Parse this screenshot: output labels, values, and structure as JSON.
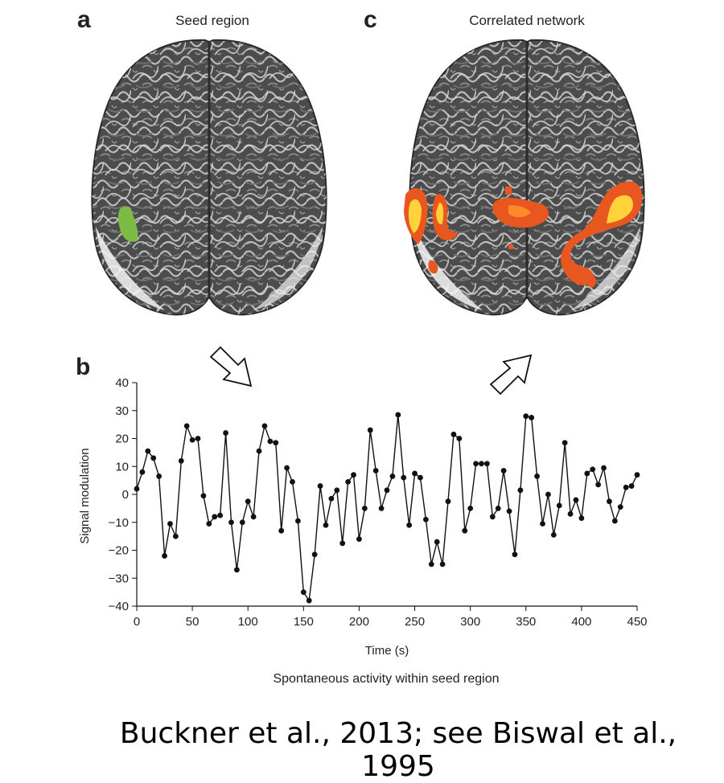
{
  "panels": {
    "a": {
      "letter": "a",
      "title": "Seed region"
    },
    "b": {
      "letter": "b"
    },
    "c": {
      "letter": "c",
      "title": "Correlated network"
    }
  },
  "colors": {
    "seed": "#7dbb45",
    "network_hot": "#ffd23a",
    "network_warm": "#e8571f",
    "brain_bg": "#4a4a4a"
  },
  "caption": "Spontaneous activity within seed region",
  "citation": "Buckner et al., 2013; see Biswal et al., 1995",
  "chart_data": {
    "type": "line",
    "xlabel": "Time (s)",
    "ylabel": "Signal modulation",
    "xlim": [
      0,
      450
    ],
    "ylim": [
      -40,
      40
    ],
    "xticks": [
      0,
      50,
      100,
      150,
      200,
      250,
      300,
      350,
      400,
      450
    ],
    "yticks": [
      40,
      30,
      20,
      10,
      0,
      -10,
      -20,
      -30,
      -40
    ],
    "xtick_labels": [
      "0",
      "50",
      "100",
      "150",
      "200",
      "250",
      "300",
      "350",
      "400",
      "450"
    ],
    "ytick_labels": [
      "40",
      "30",
      "20",
      "10",
      "0",
      "−10",
      "−20",
      "−30",
      "−40"
    ],
    "grid": false,
    "markers": true,
    "x": [
      0,
      5,
      10,
      15,
      20,
      25,
      30,
      35,
      40,
      45,
      50,
      55,
      60,
      65,
      70,
      75,
      80,
      85,
      90,
      95,
      100,
      105,
      110,
      115,
      120,
      125,
      130,
      135,
      140,
      145,
      150,
      155,
      160,
      165,
      170,
      175,
      180,
      185,
      190,
      195,
      200,
      205,
      210,
      215,
      220,
      225,
      230,
      235,
      240,
      245,
      250,
      255,
      260,
      265,
      270,
      275,
      280,
      285,
      290,
      295,
      300,
      305,
      310,
      315,
      320,
      325,
      330,
      335,
      340,
      345,
      350,
      355,
      360,
      365,
      370,
      375,
      380,
      385,
      390,
      395,
      400,
      405,
      410,
      415,
      420,
      425,
      430,
      435,
      440,
      445,
      450
    ],
    "y": [
      2,
      8,
      15.5,
      13,
      6.5,
      -22,
      -10.5,
      -15,
      12,
      24.5,
      19.5,
      20,
      -0.5,
      -10.5,
      -8,
      -7.5,
      22,
      -10,
      -27,
      -10,
      -2.5,
      -8,
      15.5,
      24.5,
      19,
      18.5,
      -13,
      9.5,
      4.5,
      -9.5,
      -35,
      -38,
      -21.5,
      3,
      -11,
      -1.5,
      1.5,
      -17.5,
      4.5,
      7,
      -16,
      -5,
      23,
      8.5,
      -5,
      1.5,
      6.5,
      28.5,
      6,
      -11,
      7.5,
      6,
      -9,
      -25,
      -17,
      -25,
      -2.5,
      21.5,
      20,
      -13,
      -5,
      11,
      11,
      11,
      -8,
      -5,
      8.5,
      -6,
      -21.5,
      1.5,
      28,
      27.5,
      6.5,
      -10.5,
      0,
      -14.5,
      -4,
      18.5,
      -7,
      -2,
      -8.5,
      7.5,
      9,
      3.5,
      9.5,
      -2.5,
      -9.5,
      -4.5,
      2.5,
      3,
      7
    ]
  }
}
